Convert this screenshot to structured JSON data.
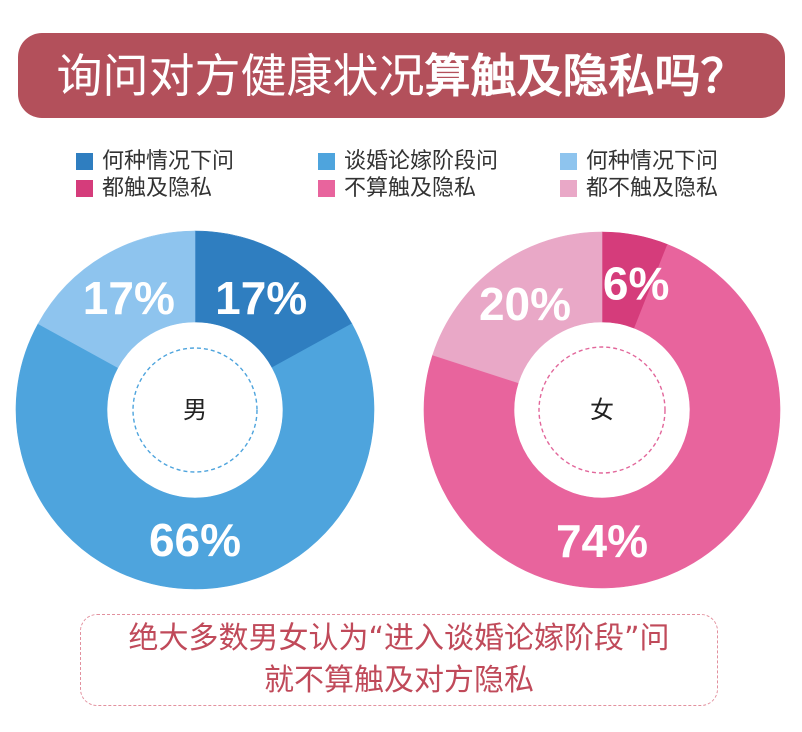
{
  "title": {
    "normal": "询问对方健康状况",
    "bold": "算触及隐私吗？"
  },
  "legend": [
    {
      "line1": "何种情况下问",
      "line2": "都触及隐私"
    },
    {
      "line1": "谈婚论嫁阶段问",
      "line2": "不算触及隐私"
    },
    {
      "line1": "何种情况下问",
      "line2": "都不触及隐私"
    }
  ],
  "chart_data": [
    {
      "type": "pie",
      "legend_position": "top",
      "center_label": "男",
      "values": [
        17,
        66,
        17
      ],
      "data_labels": [
        "17%",
        "66%",
        "17%"
      ],
      "colors": [
        "#2f7ec0",
        "#4ea4dd",
        "#8ec4ee"
      ],
      "accent_color": "#4ea4dd"
    },
    {
      "type": "pie",
      "legend_position": "top",
      "center_label": "女",
      "values": [
        6,
        74,
        20
      ],
      "data_labels": [
        "6%",
        "74%",
        "20%"
      ],
      "colors": [
        "#d53c7b",
        "#e8649d",
        "#e9a8c7"
      ],
      "accent_color": "#e2679b"
    }
  ],
  "note": {
    "line1": "绝大多数男女认为“进入谈婚论嫁阶段”问",
    "line2": "就不算触及对方隐私"
  },
  "colors": {
    "banner": "#b3505b",
    "note_text": "#c04a5a",
    "note_border": "#e2909e"
  }
}
